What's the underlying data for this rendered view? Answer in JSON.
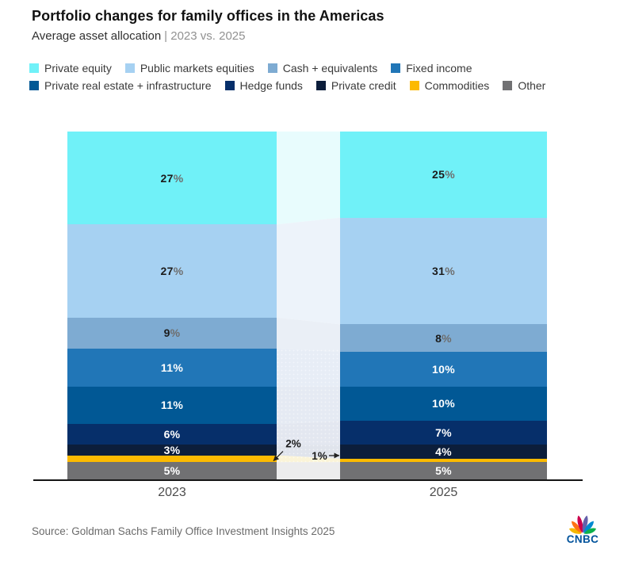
{
  "header": {
    "title": "Portfolio changes for family offices in the Americas",
    "subtitle": "Average asset allocation",
    "period": "| 2023 vs. 2025"
  },
  "chart_data": {
    "type": "bar",
    "variant": "100%-stacked-columns-with-slope-band",
    "title": "Portfolio changes for family offices in the Americas",
    "subtitle": "Average asset allocation | 2023 vs. 2025",
    "categories": [
      "2023",
      "2025"
    ],
    "unit": "%",
    "legend_position": "top",
    "series": [
      {
        "name": "Private equity",
        "color": "#70F1F8",
        "pale": "#E8FCFD",
        "label": "dark",
        "values": [
          27,
          25
        ]
      },
      {
        "name": "Public markets equities",
        "color": "#A6D1F2",
        "pale": "#EDF3FA",
        "label": "dark",
        "values": [
          27,
          31
        ]
      },
      {
        "name": "Cash + equivalents",
        "color": "#7EABD2",
        "pale": "#EAEFF6",
        "label": "dark",
        "values": [
          9,
          8
        ]
      },
      {
        "name": "Fixed income",
        "color": "#2176B7",
        "pale": "#E7EDF6",
        "label": "light",
        "values": [
          11,
          10
        ]
      },
      {
        "name": "Private real estate + infrastructure",
        "color": "#015895",
        "pale": "#E5EAF3",
        "label": "light",
        "values": [
          11,
          10
        ]
      },
      {
        "name": "Hedge funds",
        "color": "#062F6A",
        "pale": "#E3E7F0",
        "label": "light",
        "values": [
          6,
          7
        ]
      },
      {
        "name": "Private credit",
        "color": "#0C1E3B",
        "pale": "#E0E4EC",
        "label": "light",
        "values": [
          3,
          4
        ]
      },
      {
        "name": "Commodities",
        "color": "#FCBA00",
        "pale": "#FBF4D8",
        "label": "outside",
        "values": [
          2,
          1
        ]
      },
      {
        "name": "Other",
        "color": "#717173",
        "pale": "#ECECED",
        "label": "light",
        "values": [
          5,
          5
        ]
      }
    ],
    "annotations": [
      {
        "text": "2%",
        "category": "2023",
        "series": "Commodities"
      },
      {
        "text": "1%",
        "category": "2025",
        "series": "Commodities"
      }
    ]
  },
  "footer": {
    "source": "Source: Goldman Sachs Family Office Investment Insights 2025",
    "logo_text": "CNBC"
  }
}
